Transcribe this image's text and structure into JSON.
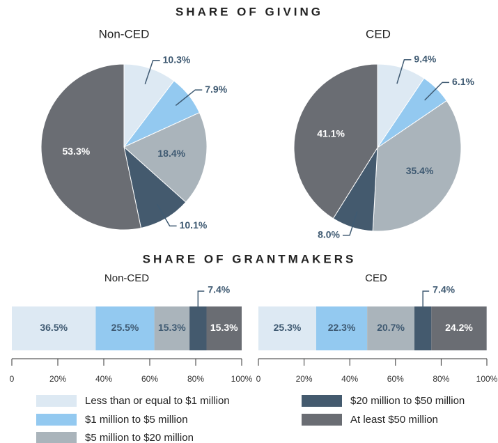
{
  "chart_data": [
    {
      "type": "pie",
      "title": "SHARE OF GIVING",
      "panels": [
        {
          "title": "Non-CED",
          "values": [
            10.3,
            7.9,
            18.4,
            10.1,
            53.3
          ],
          "value_labels": [
            "10.3%",
            "7.9%",
            "18.4%",
            "10.1%",
            "53.3%"
          ]
        },
        {
          "title": "CED",
          "values": [
            9.4,
            6.1,
            35.4,
            8.0,
            41.1
          ],
          "value_labels": [
            "9.4%",
            "6.1%",
            "35.4%",
            "8.0%",
            "41.1%"
          ]
        }
      ]
    },
    {
      "type": "stacked_bar",
      "title": "SHARE OF GRANTMAKERS",
      "xlim": [
        0,
        100
      ],
      "xticks": [
        0,
        {
          "value": 20,
          "label": "20%"
        },
        {
          "value": 40,
          "label": "40%"
        },
        {
          "value": 60,
          "label": "60%"
        },
        {
          "value": 80,
          "label": "80%"
        },
        {
          "value": 100,
          "label": "100%"
        }
      ],
      "panels": [
        {
          "title": "Non-CED",
          "values": [
            36.5,
            25.5,
            15.3,
            7.4,
            15.3
          ],
          "value_labels": [
            "36.5%",
            "25.5%",
            "15.3%",
            "7.4%",
            "15.3%"
          ]
        },
        {
          "title": "CED",
          "values": [
            25.3,
            22.3,
            20.7,
            7.4,
            24.2
          ],
          "value_labels": [
            "25.3%",
            "22.3%",
            "20.7%",
            "7.4%",
            "24.2%"
          ]
        }
      ]
    }
  ],
  "legend": {
    "categories": [
      "Less than or equal to $1 million",
      "$1 million to $5 million",
      "$5 million to $20 million",
      "$20 million to $50 million",
      "At least $50 million"
    ],
    "colors": [
      "#dde9f3",
      "#93c9f0",
      "#aab4bb",
      "#445a6e",
      "#6a6d73"
    ],
    "text_colors": [
      "#3f5a72",
      "#3f5a72",
      "#3f5a72",
      "#ffffff",
      "#ffffff"
    ]
  }
}
